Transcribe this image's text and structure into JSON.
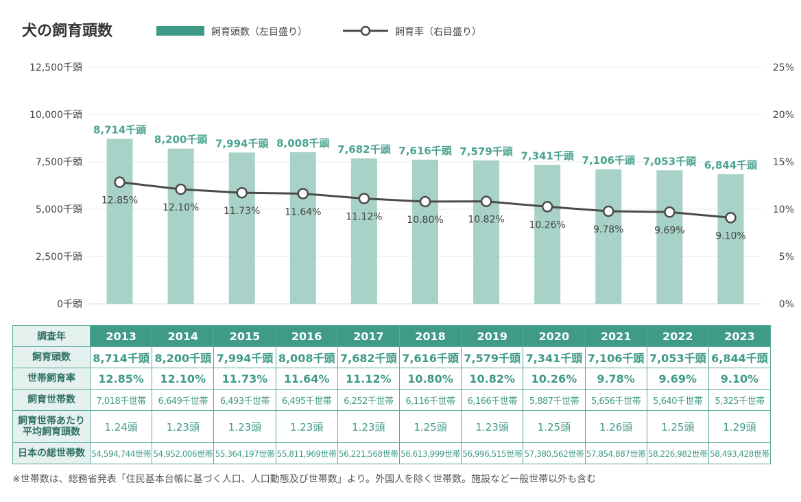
{
  "title": "犬の飼育頭数",
  "legend": {
    "bar": "飼育頭数（左目盛り）",
    "line": "飼育率（右目盛り）"
  },
  "colors": {
    "bar": "#a8d1c7",
    "accent": "#3f9a88",
    "line": "#4a4a4a",
    "grid": "#e3eeea"
  },
  "chart_data": {
    "type": "bar",
    "categories": [
      "2013",
      "2014",
      "2015",
      "2016",
      "2017",
      "2018",
      "2019",
      "2020",
      "2021",
      "2022",
      "2023"
    ],
    "series": [
      {
        "name": "飼育頭数（左目盛り）",
        "type": "bar",
        "axis": "left",
        "values": [
          8714,
          8200,
          7994,
          8008,
          7682,
          7616,
          7579,
          7341,
          7106,
          7053,
          6844
        ],
        "labels": [
          "8,714千頭",
          "8,200千頭",
          "7,994千頭",
          "8,008千頭",
          "7,682千頭",
          "7,616千頭",
          "7,579千頭",
          "7,341千頭",
          "7,106千頭",
          "7,053千頭",
          "6,844千頭"
        ]
      },
      {
        "name": "飼育率（右目盛り）",
        "type": "line",
        "axis": "right",
        "values": [
          12.85,
          12.1,
          11.73,
          11.64,
          11.12,
          10.8,
          10.82,
          10.26,
          9.78,
          9.69,
          9.1
        ],
        "labels": [
          "12.85%",
          "12.10%",
          "11.73%",
          "11.64%",
          "11.12%",
          "10.80%",
          "10.82%",
          "10.26%",
          "9.78%",
          "9.69%",
          "9.10%"
        ]
      }
    ],
    "y_left": {
      "ylim": [
        0,
        12500
      ],
      "ticks": [
        0,
        2500,
        5000,
        7500,
        10000,
        12500
      ],
      "tick_labels": [
        "0千頭",
        "2,500千頭",
        "5,000千頭",
        "7,500千頭",
        "10,000千頭",
        "12,500千頭"
      ]
    },
    "y_right": {
      "ylim": [
        0,
        25
      ],
      "ticks": [
        0,
        5,
        10,
        15,
        20,
        25
      ],
      "tick_labels": [
        "0%",
        "5%",
        "10%",
        "15%",
        "20%",
        "25%"
      ]
    },
    "grid": true,
    "legend_position": "top"
  },
  "table": {
    "corner": "調査年",
    "years": [
      "2013",
      "2014",
      "2015",
      "2016",
      "2017",
      "2018",
      "2019",
      "2020",
      "2021",
      "2022",
      "2023"
    ],
    "rows": [
      {
        "header": "飼育頭数",
        "cells": [
          "8,714千頭",
          "8,200千頭",
          "7,994千頭",
          "8,008千頭",
          "7,682千頭",
          "7,616千頭",
          "7,579千頭",
          "7,341千頭",
          "7,106千頭",
          "7,053千頭",
          "6,844千頭"
        ]
      },
      {
        "header": "世帯飼育率",
        "cells": [
          "12.85%",
          "12.10%",
          "11.73%",
          "11.64%",
          "11.12%",
          "10.80%",
          "10.82%",
          "10.26%",
          "9.78%",
          "9.69%",
          "9.10%"
        ]
      },
      {
        "header": "飼育世帯数",
        "cells": [
          "7,018千世帯",
          "6,649千世帯",
          "6,493千世帯",
          "6,495千世帯",
          "6,252千世帯",
          "6,116千世帯",
          "6,166千世帯",
          "5,887千世帯",
          "5,656千世帯",
          "5,640千世帯",
          "5,325千世帯"
        ]
      },
      {
        "header": "飼育世帯あたり平均飼育頭数",
        "header_lines": [
          "飼育世帯あたり",
          "平均飼育頭数"
        ],
        "cells": [
          "1.24頭",
          "1.23頭",
          "1.23頭",
          "1.23頭",
          "1.23頭",
          "1.25頭",
          "1.23頭",
          "1.25頭",
          "1.26頭",
          "1.25頭",
          "1.29頭"
        ]
      },
      {
        "header": "日本の総世帯数",
        "cells": [
          "54,594,744世帯",
          "54,952,006世帯",
          "55,364,197世帯",
          "55,811,969世帯",
          "56,221,568世帯",
          "56,613,999世帯",
          "56,996,515世帯",
          "57,380,562世帯",
          "57,854,887世帯",
          "58,226,982世帯",
          "58,493,428世帯"
        ]
      }
    ]
  },
  "footnote": "※世帯数は、総務省発表「住民基本台帳に基づく人口、人口動態及び世帯数」より。外国人を除く世帯数。施設など一般世帯以外も含む"
}
